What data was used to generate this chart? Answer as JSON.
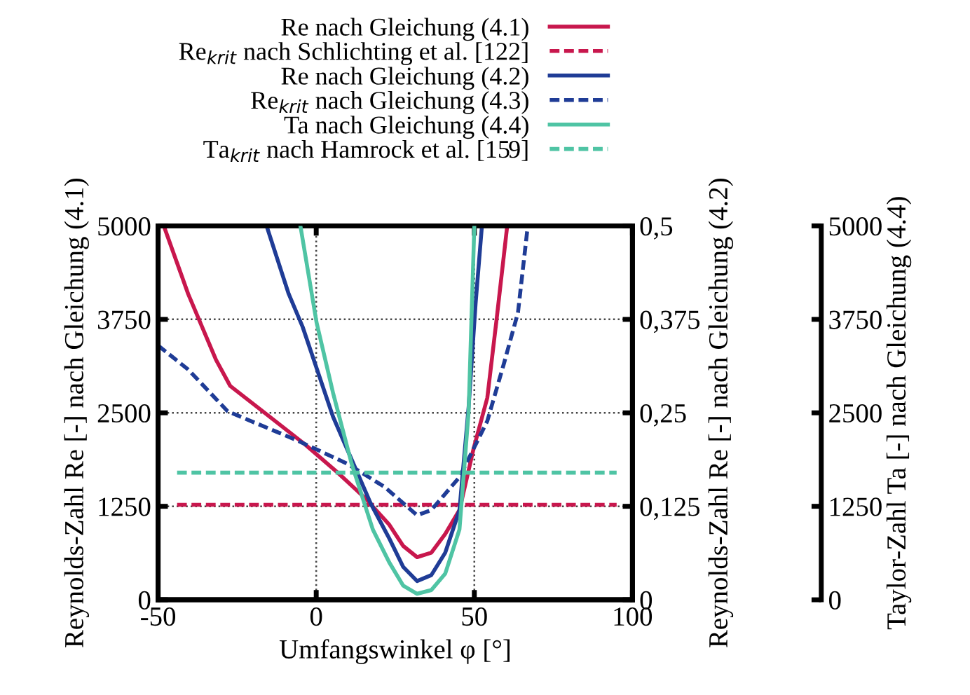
{
  "chart_data": {
    "type": "line",
    "xlabel": "Umfangswinkel φ [°]",
    "ylabel": "Reynolds-Zahl Re [-] nach Gleichung (4.1)",
    "y2label": "Reynolds-Zahl Re [-] nach Gleichung (4.2)",
    "y3label": "Taylor-Zahl Ta [-] nach Gleichung (4.4)",
    "xlim": [
      -50,
      100
    ],
    "xticks": [
      -50,
      0,
      50,
      100
    ],
    "ylim": [
      0,
      5000
    ],
    "yticks": [
      0,
      1250,
      2500,
      3750,
      5000
    ],
    "y2lim": [
      0,
      0.5
    ],
    "y2ticks": [
      0,
      {
        "value": 0.125,
        "label": "0,125"
      },
      {
        "value": 0.25,
        "label": "0,25"
      },
      {
        "value": 0.375,
        "label": "0,375"
      },
      {
        "value": 0.5,
        "label": "0,5"
      }
    ],
    "y3lim": [
      0,
      5000
    ],
    "y3ticks": [
      0,
      1250,
      2500,
      3750,
      5000
    ],
    "grid": true,
    "legend": "top",
    "marker": "none",
    "series": [
      {
        "name": "Re nach Gleichung (4.1)",
        "color": "#c8174d",
        "line_style": "solid",
        "x": [
          -48.2,
          -40.5,
          -31.7,
          -27.2,
          -16.9,
          -3.6,
          6.8,
          15.7,
          23,
          27.5,
          31.9,
          36.4,
          40.8,
          45.3,
          49.7,
          54.1,
          57.1,
          60.4
        ],
        "values": [
          5000,
          4090,
          3210,
          2860,
          2520,
          2080,
          1700,
          1350,
          1010,
          720,
          570,
          630,
          880,
          1200,
          2010,
          2700,
          3770,
          5000
        ]
      },
      {
        "name": "Re$_{krit}$ nach Schlichting et al. [122]",
        "color": "#c8174d",
        "line_style": "dashed",
        "x": [
          -44,
          95
        ],
        "values": [
          1270,
          1270
        ]
      },
      {
        "name": "Re nach Gleichung (4.2)",
        "color": "#1f3c96",
        "line_style": "solid",
        "axis": "y2",
        "x": [
          -15.7,
          -8.7,
          -4.3,
          5.3,
          17.2,
          23.1,
          27.5,
          31.9,
          36.4,
          40.8,
          45.3,
          48.2,
          50.4,
          52.4
        ],
        "values": [
          0.5,
          0.409,
          0.365,
          0.245,
          0.129,
          0.082,
          0.044,
          0.025,
          0.033,
          0.063,
          0.12,
          0.258,
          0.396,
          0.5
        ]
      },
      {
        "name": "Re$_{krit}$ nach Gleichung (4.3)",
        "color": "#1f3c96",
        "line_style": "dashed",
        "axis": "y2",
        "x": [
          -50,
          -40.5,
          -28,
          -6.5,
          9.8,
          21.6,
          31.9,
          36.4,
          45.3,
          54.1,
          59.3,
          63.8,
          66.9
        ],
        "values": [
          0.34,
          0.308,
          0.252,
          0.214,
          0.182,
          0.151,
          0.113,
          0.12,
          0.164,
          0.239,
          0.315,
          0.384,
          0.5
        ]
      },
      {
        "name": "Ta nach Gleichung (4.4)",
        "color": "#4fc4a4",
        "line_style": "solid",
        "axis": "y3",
        "x": [
          -5,
          0.1,
          5.3,
          11.2,
          17.9,
          23.1,
          27.5,
          31.9,
          36.4,
          40.8,
          45.3,
          48.2,
          50
        ],
        "values": [
          5000,
          3710,
          2770,
          1820,
          940,
          500,
          190,
          80,
          130,
          350,
          940,
          2520,
          5000
        ]
      },
      {
        "name": "Ta$_{krit}$ nach Hamrock et al. [159]",
        "color": "#4fc4a4",
        "line_style": "dashed",
        "axis": "y3",
        "x": [
          -44,
          95
        ],
        "values": [
          1700,
          1700
        ]
      }
    ]
  }
}
